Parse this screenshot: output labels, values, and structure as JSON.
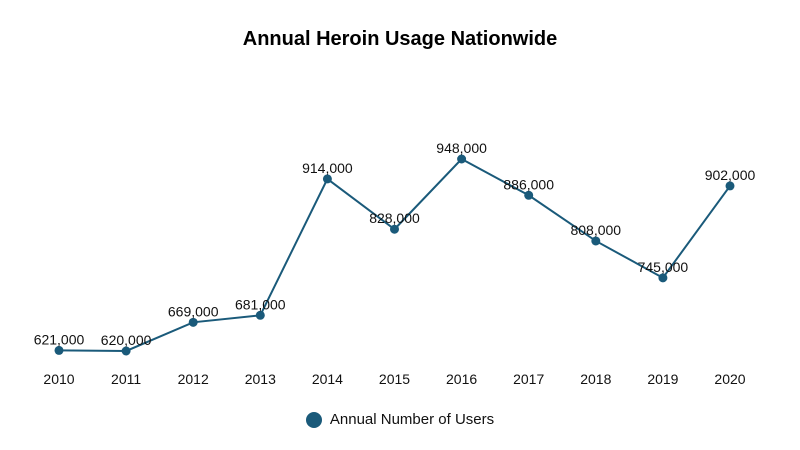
{
  "chart_data": {
    "type": "line",
    "title": "Annual Heroin Usage Nationwide",
    "xlabel": "",
    "ylabel": "",
    "categories": [
      "2010",
      "2011",
      "2012",
      "2013",
      "2014",
      "2015",
      "2016",
      "2017",
      "2018",
      "2019",
      "2020"
    ],
    "series": [
      {
        "name": "Annual Number of Users",
        "color": "#1a5a7a",
        "values": [
          621000,
          620000,
          669000,
          681000,
          914000,
          828000,
          948000,
          886000,
          808000,
          745000,
          902000
        ],
        "labels": [
          "621,000",
          "620,000",
          "669,000",
          "681,000",
          "914,000",
          "828,000",
          "948,000",
          "886,000",
          "808,000",
          "745,000",
          "902,000"
        ]
      }
    ],
    "grid": false,
    "y_axis_visible": false,
    "legend_position": "bottom",
    "data_labels": true
  },
  "legend": {
    "label": "Annual Number of Users",
    "color": "#1a5a7a"
  }
}
